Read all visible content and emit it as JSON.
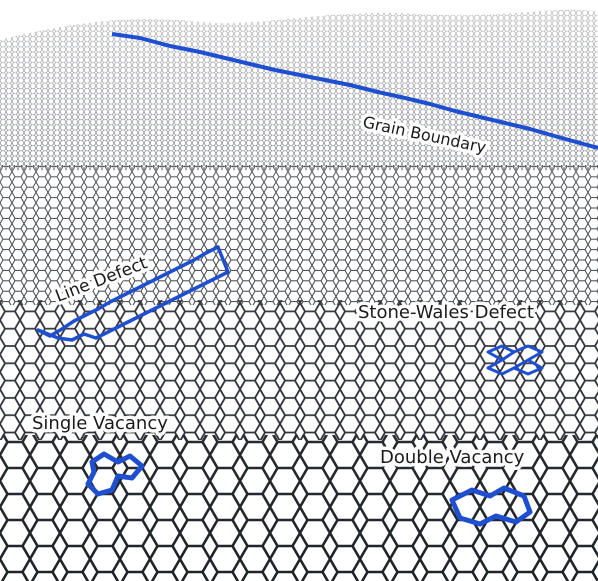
{
  "labels": {
    "grain_boundary": "Grain Boundary",
    "line_defect": "Line Defect",
    "stone_wales": "Stone-Wales Defect",
    "single_vacancy": "Single Vacancy",
    "double_vacancy": "Double Vacancy"
  },
  "colors": {
    "lattice": "#2b2f36",
    "defect": "#1f4fd1",
    "background": "#ffffff"
  }
}
